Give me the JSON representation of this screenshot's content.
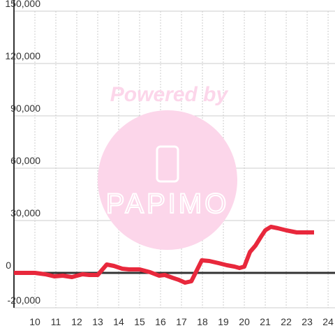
{
  "chart_data": {
    "type": "line",
    "watermark": {
      "top": "Powered by",
      "bottom": "PAPIMO"
    },
    "x": [
      9,
      10,
      10.5,
      10.93,
      11.33,
      11.77,
      12.27,
      12.6,
      13,
      13.43,
      13.77,
      14.17,
      14.5,
      15,
      15.5,
      15.93,
      16.2,
      16.57,
      16.87,
      17.17,
      17.47,
      17.97,
      18.33,
      18.77,
      19.17,
      19.53,
      19.77,
      20,
      20.27,
      20.53,
      20.8,
      21,
      21.27,
      21.6,
      22,
      22.5,
      23.33
    ],
    "values": [
      0,
      0,
      -800,
      -2000,
      -1600,
      -2400,
      -800,
      -1200,
      -1200,
      4800,
      4000,
      2400,
      2000,
      2000,
      400,
      -1600,
      -1200,
      -2800,
      -4000,
      -5600,
      -4800,
      7200,
      6800,
      5600,
      4400,
      3600,
      2800,
      3600,
      12000,
      15600,
      20800,
      24400,
      26400,
      25600,
      24400,
      23200,
      23200
    ],
    "color": "#e8283c",
    "xlim": [
      9,
      24.33
    ],
    "xticks": [
      10,
      11,
      12,
      13,
      14,
      15,
      16,
      17,
      18,
      19,
      20,
      21,
      22,
      23,
      24
    ],
    "ylim": [
      -20000,
      150000
    ],
    "yticks": [
      {
        "value": -20000,
        "label": "-20,000"
      },
      0,
      {
        "value": 30000,
        "label": "30,000"
      },
      {
        "value": 60000,
        "label": "60,000"
      },
      {
        "value": 90000,
        "label": "90,000"
      },
      {
        "value": 120000,
        "label": "120,000"
      },
      {
        "value": 150000,
        "label": "150,000"
      }
    ],
    "grid": true
  }
}
